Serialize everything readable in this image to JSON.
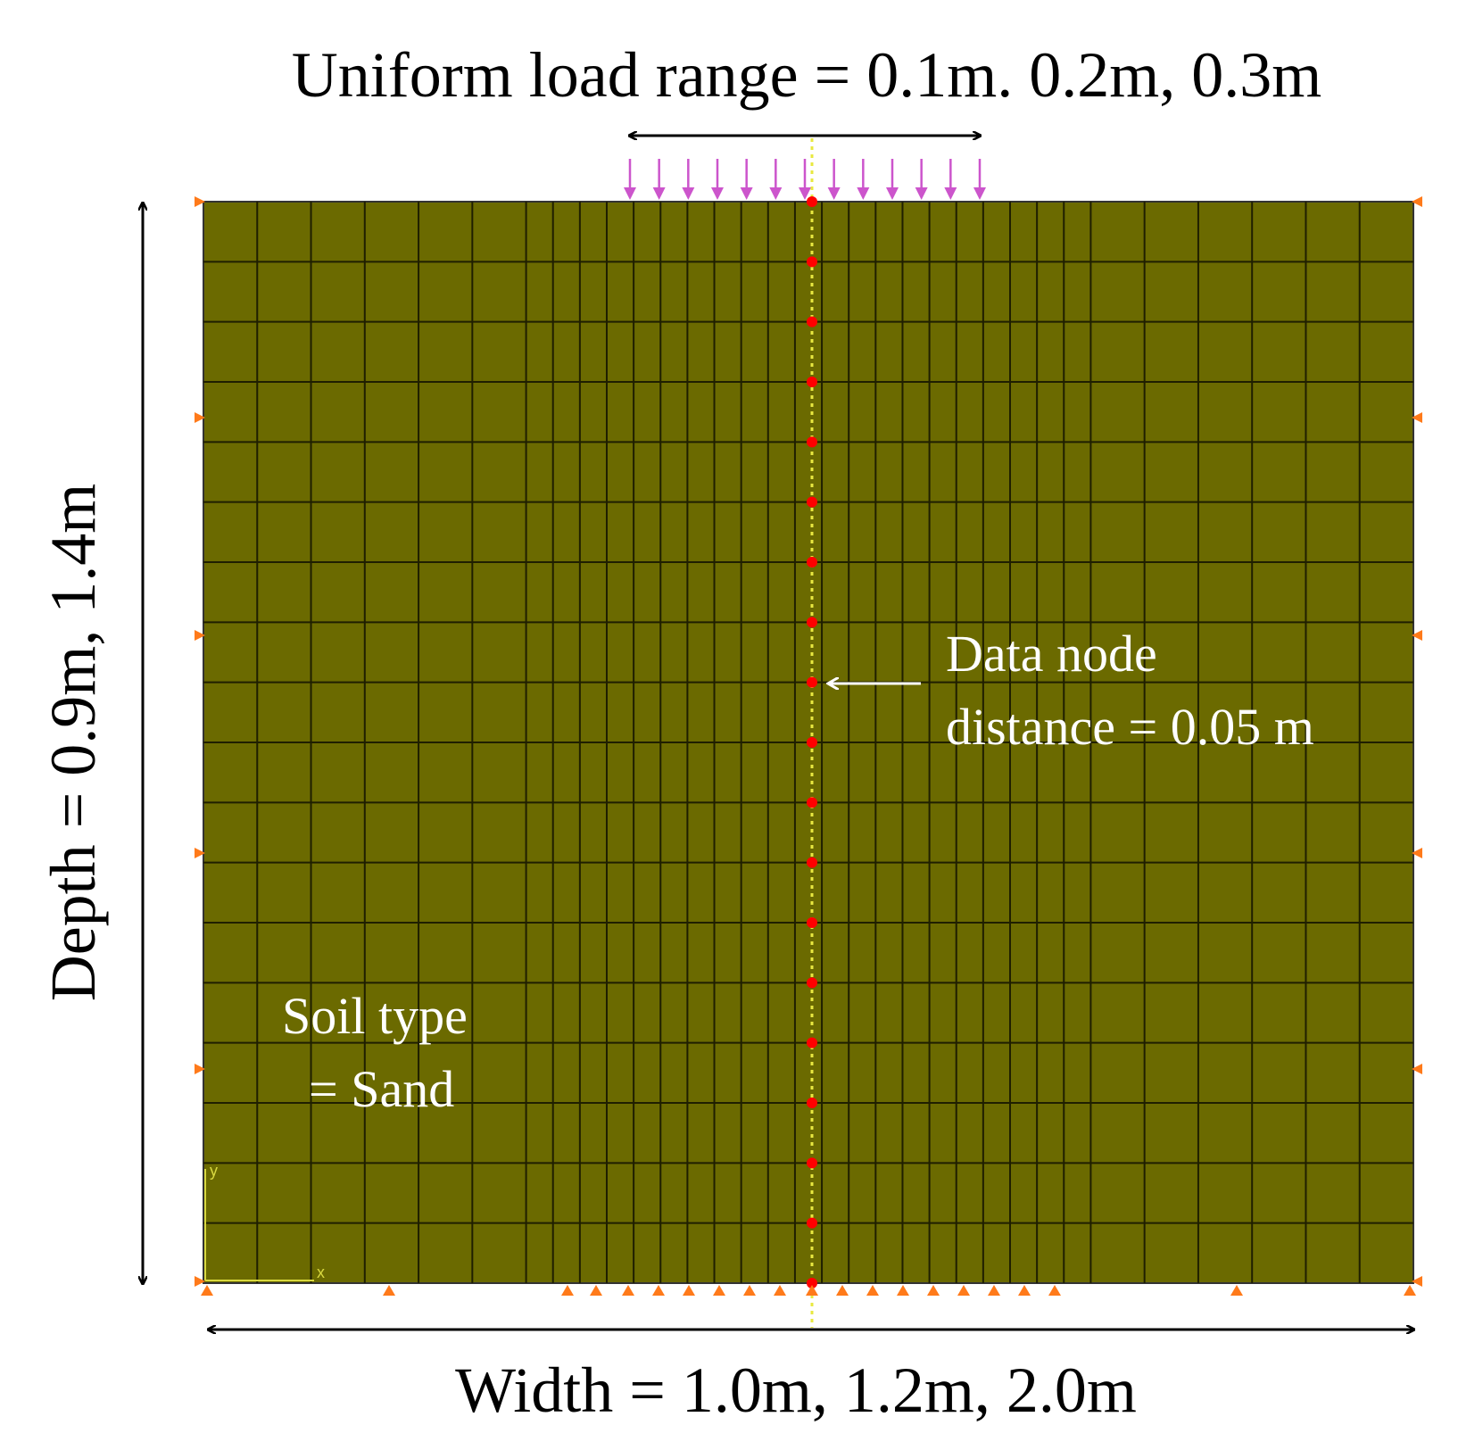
{
  "labels": {
    "load_range": "Uniform load range = 0.1m. 0.2m, 0.3m",
    "depth": "Depth = 0.9m, 1.4m",
    "width": "Width = 1.0m, 1.2m, 2.0m",
    "data_node_line1": "Data node",
    "data_node_line2": "distance = 0.05 m",
    "soil_line1": "Soil type",
    "soil_line2": "= Sand",
    "axis_y": "y",
    "axis_x": "x"
  },
  "colors": {
    "soil": "#6b6a00",
    "grid_line": "#1f1f00",
    "load_arrow": "#cc55cc",
    "data_node": "#ff0000",
    "support": "#ff7a1a",
    "centerline": "#e8e840",
    "annotation_white": "#ffffff",
    "dimension_black": "#000000"
  },
  "mesh": {
    "rows": 18,
    "column_widths": [
      10,
      10,
      10,
      10,
      10,
      10,
      5,
      5,
      5,
      5,
      5,
      5,
      5,
      5,
      5,
      5,
      5,
      5,
      5,
      5,
      5,
      5,
      5,
      5,
      5,
      5,
      5,
      10,
      10,
      10,
      10,
      10,
      10
    ],
    "data_node_count": 19,
    "load_arrow_count": 13
  }
}
